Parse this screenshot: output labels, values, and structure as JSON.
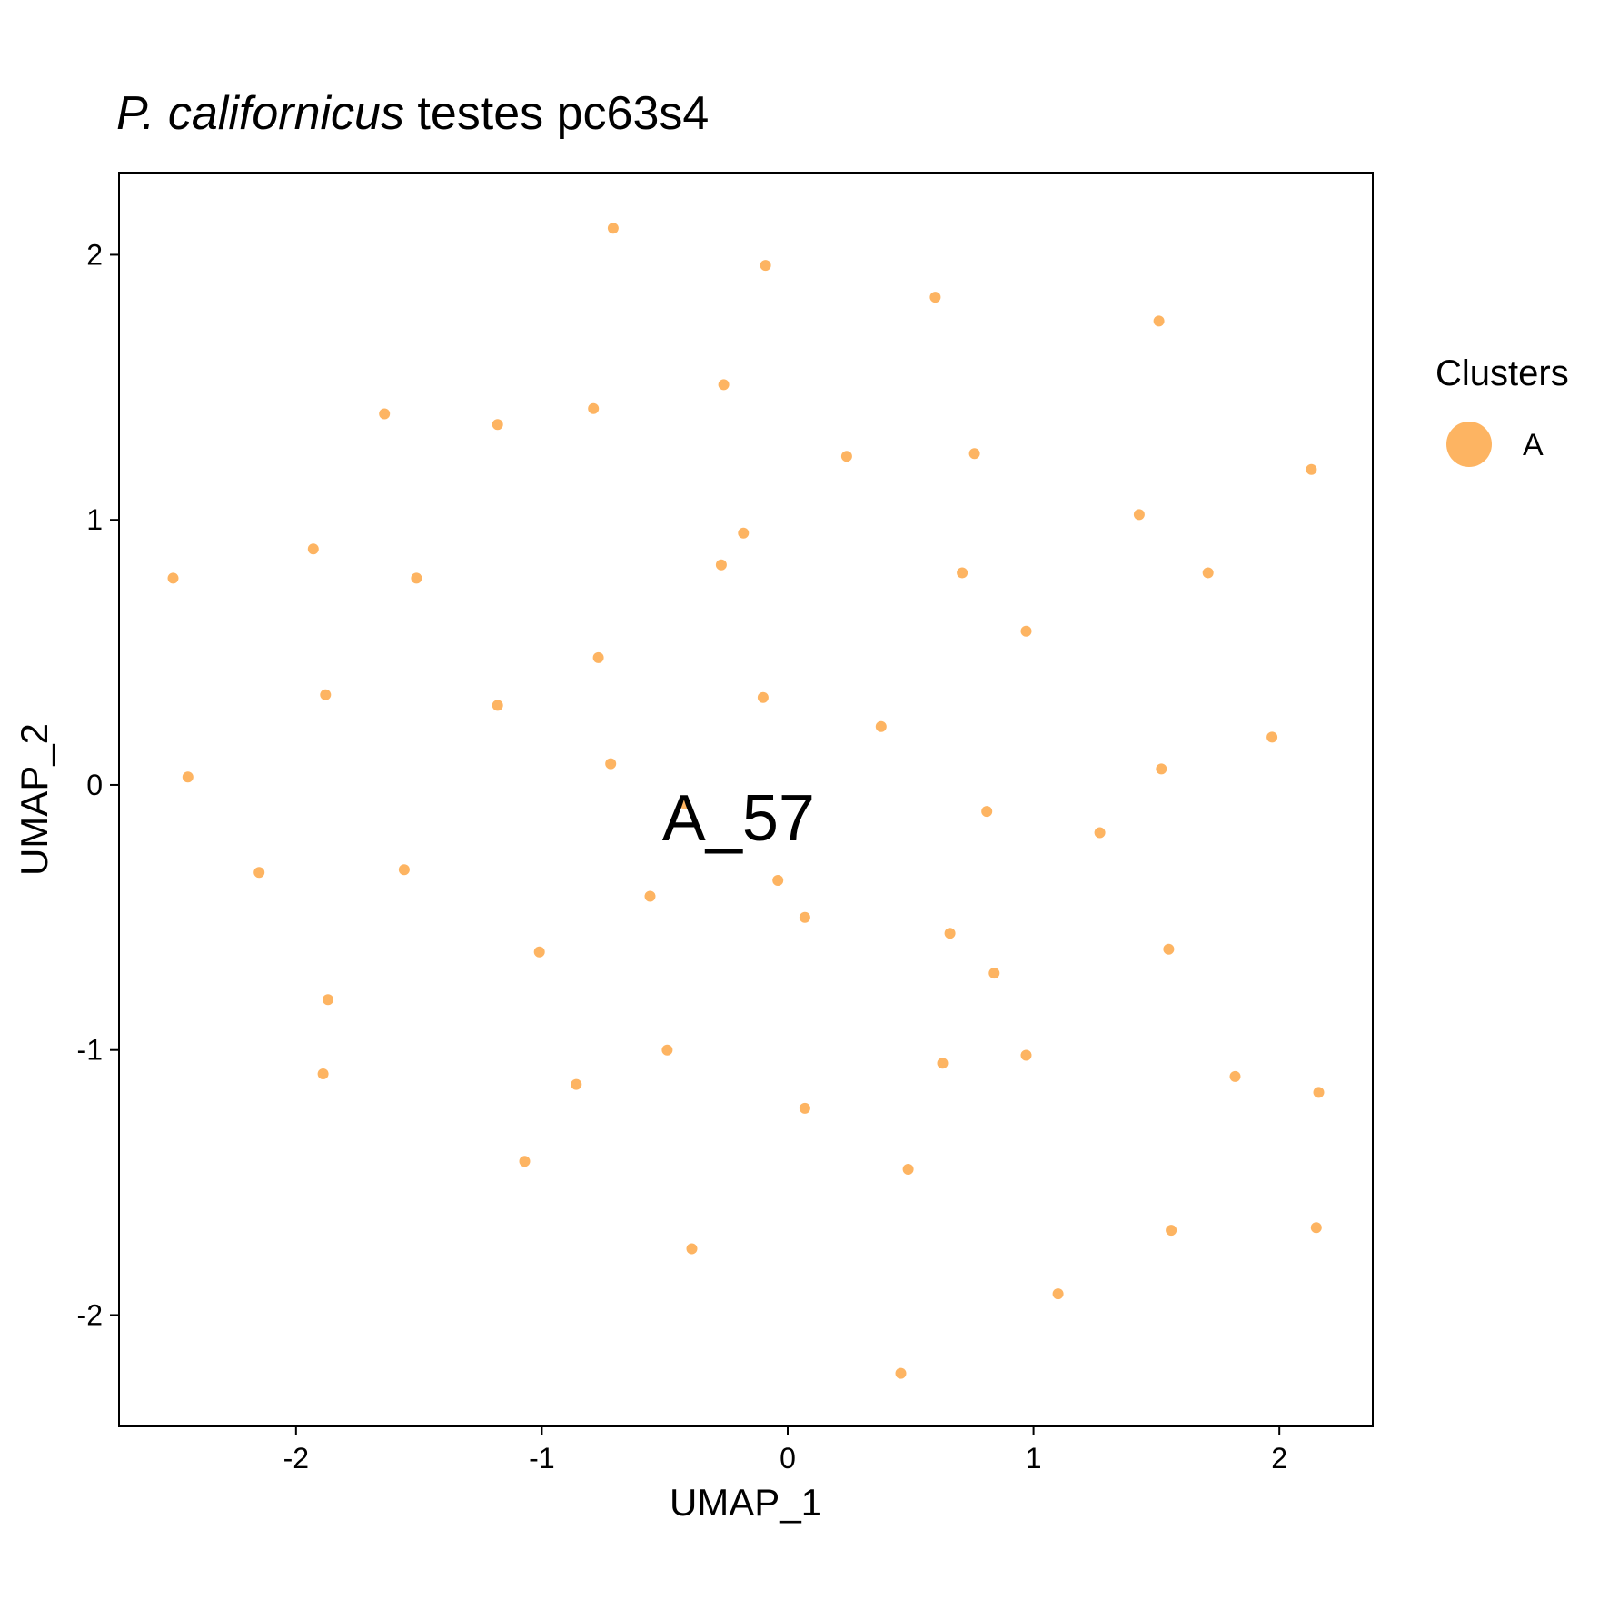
{
  "title": {
    "italic": "P. californicus",
    "rest": " testes pc63s4"
  },
  "chart_data": {
    "type": "scatter",
    "xlabel": "UMAP_1",
    "ylabel": "UMAP_2",
    "xlim": [
      -2.72,
      2.38
    ],
    "ylim": [
      -2.42,
      2.31
    ],
    "xticks": [
      -2,
      -1,
      0,
      1,
      2
    ],
    "yticks": [
      -2,
      -1,
      0,
      1,
      2
    ],
    "grid": false,
    "legend": {
      "title": "Clusters",
      "position": "right",
      "entries": [
        {
          "label": "A",
          "color": "#FDB462"
        }
      ]
    },
    "annotations": [
      {
        "text": "A_57",
        "x": -0.2,
        "y": -0.12
      }
    ],
    "series": [
      {
        "name": "A",
        "color": "#FDB462",
        "points": [
          [
            -0.71,
            2.1
          ],
          [
            -0.09,
            1.96
          ],
          [
            0.6,
            1.84
          ],
          [
            1.51,
            1.75
          ],
          [
            -0.26,
            1.51
          ],
          [
            -1.64,
            1.4
          ],
          [
            -1.18,
            1.36
          ],
          [
            -0.79,
            1.42
          ],
          [
            0.24,
            1.24
          ],
          [
            0.76,
            1.25
          ],
          [
            2.13,
            1.19
          ],
          [
            1.43,
            1.02
          ],
          [
            -1.93,
            0.89
          ],
          [
            -0.18,
            0.95
          ],
          [
            -0.27,
            0.83
          ],
          [
            -2.5,
            0.78
          ],
          [
            -1.51,
            0.78
          ],
          [
            0.71,
            0.8
          ],
          [
            1.71,
            0.8
          ],
          [
            0.97,
            0.58
          ],
          [
            -0.77,
            0.48
          ],
          [
            -1.88,
            0.34
          ],
          [
            -1.18,
            0.3
          ],
          [
            -0.1,
            0.33
          ],
          [
            0.38,
            0.22
          ],
          [
            1.97,
            0.18
          ],
          [
            -2.44,
            0.03
          ],
          [
            -0.72,
            0.08
          ],
          [
            1.52,
            0.06
          ],
          [
            0.81,
            -0.1
          ],
          [
            1.27,
            -0.18
          ],
          [
            -2.15,
            -0.33
          ],
          [
            -1.56,
            -0.32
          ],
          [
            -0.56,
            -0.42
          ],
          [
            -0.04,
            -0.36
          ],
          [
            0.07,
            -0.5
          ],
          [
            0.66,
            -0.56
          ],
          [
            1.55,
            -0.62
          ],
          [
            -1.01,
            -0.63
          ],
          [
            0.84,
            -0.71
          ],
          [
            -1.87,
            -0.81
          ],
          [
            -0.49,
            -1.0
          ],
          [
            0.97,
            -1.02
          ],
          [
            -1.89,
            -1.09
          ],
          [
            0.63,
            -1.05
          ],
          [
            -0.86,
            -1.13
          ],
          [
            1.82,
            -1.1
          ],
          [
            2.16,
            -1.16
          ],
          [
            0.07,
            -1.22
          ],
          [
            -1.07,
            -1.42
          ],
          [
            0.49,
            -1.45
          ],
          [
            -0.39,
            -1.75
          ],
          [
            1.56,
            -1.68
          ],
          [
            2.15,
            -1.67
          ],
          [
            1.1,
            -1.92
          ],
          [
            0.46,
            -2.22
          ],
          [
            -0.42,
            -0.07
          ]
        ]
      }
    ]
  }
}
